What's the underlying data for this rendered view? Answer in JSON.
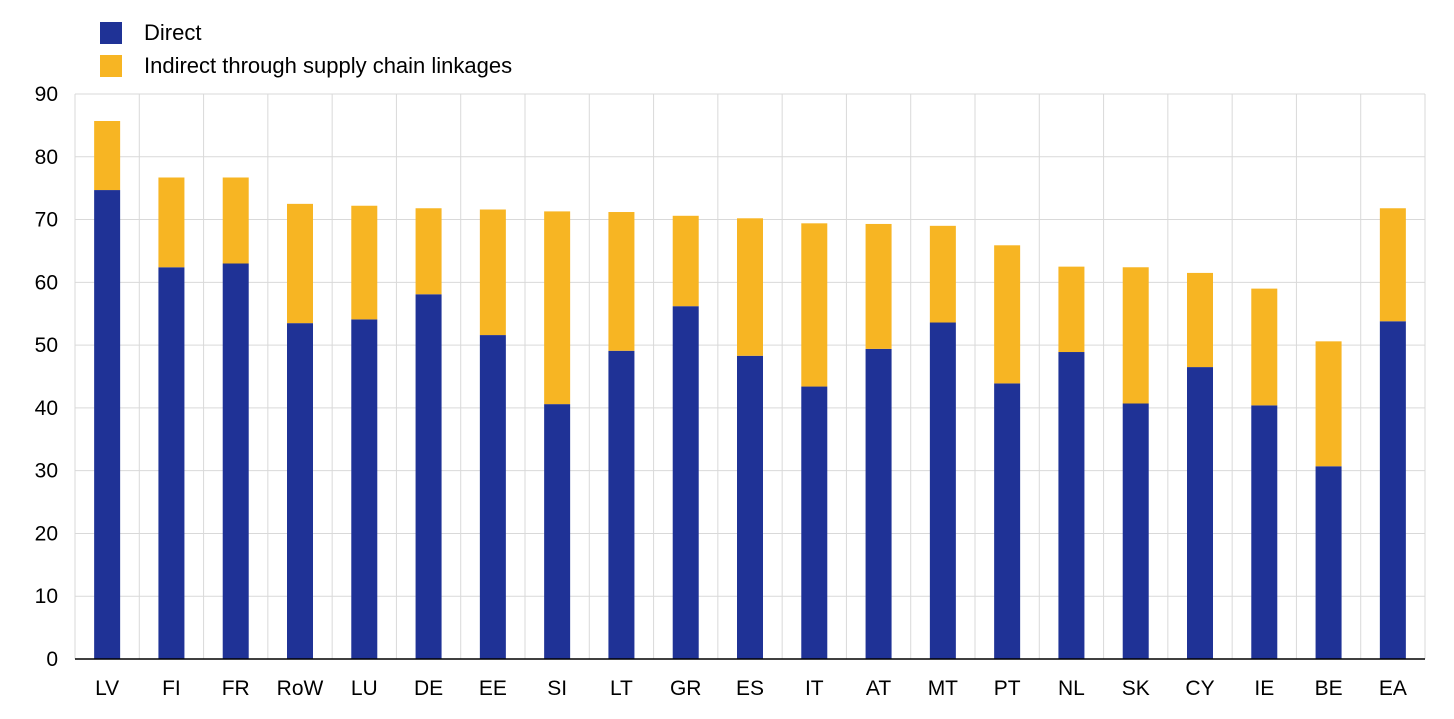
{
  "colors": {
    "direct": "#1f3296",
    "indirect": "#f7b523",
    "grid": "#d9d9d9",
    "axis": "#000000"
  },
  "chart_data": {
    "type": "bar",
    "stacked": true,
    "categories": [
      "LV",
      "FI",
      "FR",
      "RoW",
      "LU",
      "DE",
      "EE",
      "SI",
      "LT",
      "GR",
      "ES",
      "IT",
      "AT",
      "MT",
      "PT",
      "NL",
      "SK",
      "CY",
      "IE",
      "BE",
      "EA"
    ],
    "series": [
      {
        "name": "Direct",
        "color": "#1f3296",
        "values": [
          74.7,
          62.4,
          63.0,
          53.5,
          54.1,
          58.1,
          51.6,
          40.6,
          49.1,
          56.2,
          48.3,
          43.4,
          49.4,
          53.6,
          43.9,
          48.9,
          40.7,
          46.5,
          40.4,
          30.7,
          53.8
        ]
      },
      {
        "name": "Indirect through supply chain linkages",
        "color": "#f7b523",
        "values": [
          11.0,
          14.3,
          13.7,
          19.0,
          18.1,
          13.7,
          20.0,
          30.7,
          22.1,
          14.4,
          21.9,
          26.0,
          19.9,
          15.4,
          22.0,
          13.6,
          21.7,
          15.0,
          18.6,
          19.9,
          18.0
        ]
      }
    ],
    "ylim": [
      0,
      90
    ],
    "yticks": [
      "0",
      "10",
      "20",
      "30",
      "40",
      "50",
      "60",
      "70",
      "80",
      "90"
    ],
    "grid": true,
    "legend_position": "top-left"
  }
}
